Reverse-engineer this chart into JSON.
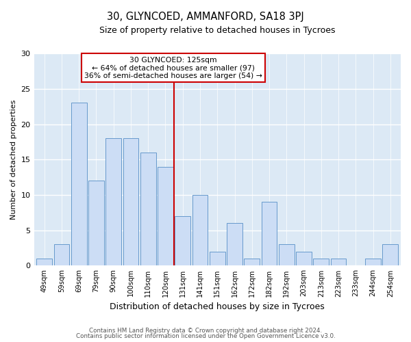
{
  "title": "30, GLYNCOED, AMMANFORD, SA18 3PJ",
  "subtitle": "Size of property relative to detached houses in Tycroes",
  "xlabel": "Distribution of detached houses by size in Tycroes",
  "ylabel": "Number of detached properties",
  "bar_labels": [
    "49sqm",
    "59sqm",
    "69sqm",
    "79sqm",
    "90sqm",
    "100sqm",
    "110sqm",
    "120sqm",
    "131sqm",
    "141sqm",
    "151sqm",
    "162sqm",
    "172sqm",
    "182sqm",
    "192sqm",
    "203sqm",
    "213sqm",
    "223sqm",
    "233sqm",
    "244sqm",
    "254sqm"
  ],
  "bar_values": [
    1,
    3,
    23,
    12,
    18,
    18,
    16,
    14,
    7,
    10,
    2,
    6,
    1,
    9,
    3,
    2,
    1,
    1,
    0,
    1,
    3
  ],
  "bar_color": "#ccddf5",
  "bar_edgecolor": "#6699cc",
  "vline_color": "#cc0000",
  "annotation_title": "30 GLYNCOED: 125sqm",
  "annotation_line1": "← 64% of detached houses are smaller (97)",
  "annotation_line2": "36% of semi-detached houses are larger (54) →",
  "annotation_box_edgecolor": "#cc0000",
  "ylim": [
    0,
    30
  ],
  "yticks": [
    0,
    5,
    10,
    15,
    20,
    25,
    30
  ],
  "footnote1": "Contains HM Land Registry data © Crown copyright and database right 2024.",
  "footnote2": "Contains public sector information licensed under the Open Government Licence v3.0.",
  "fig_bg_color": "#ffffff",
  "plot_bg_color": "#dce9f5"
}
